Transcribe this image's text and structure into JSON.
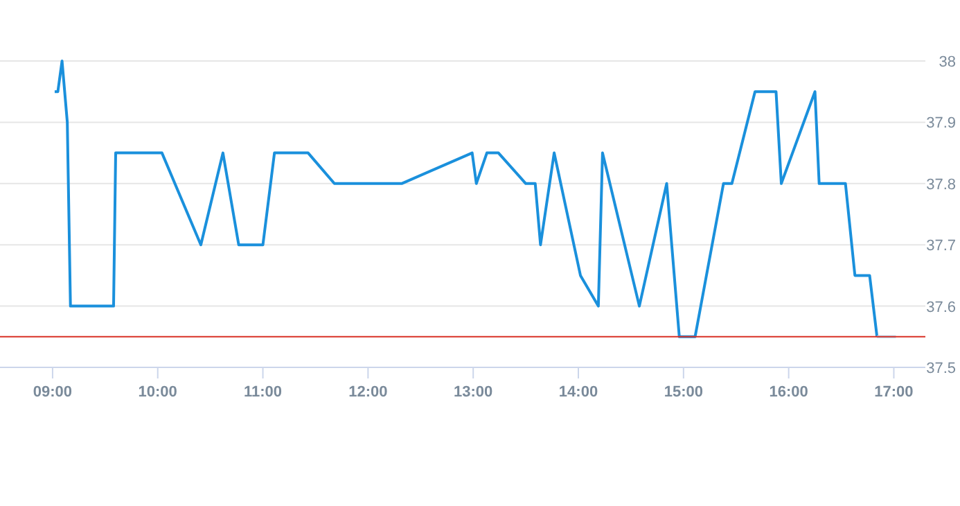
{
  "chart_data": {
    "type": "line",
    "xlim": [
      8.5,
      17.3
    ],
    "ylim": [
      37.5,
      38
    ],
    "xticks": [
      {
        "value": 9,
        "label": "09:00"
      },
      {
        "value": 10,
        "label": "10:00"
      },
      {
        "value": 11,
        "label": "11:00"
      },
      {
        "value": 12,
        "label": "12:00"
      },
      {
        "value": 13,
        "label": "13:00"
      },
      {
        "value": 14,
        "label": "14:00"
      },
      {
        "value": 15,
        "label": "15:00"
      },
      {
        "value": 16,
        "label": "16:00"
      },
      {
        "value": 17,
        "label": "17:00"
      }
    ],
    "yticks": [
      37.5,
      37.6,
      37.7,
      37.8,
      37.9,
      38
    ],
    "grid": "y",
    "marker": "none",
    "line_style": "solid",
    "series": [
      {
        "color": "#1a90dc",
        "x": [
          9.02,
          9.05,
          9.09,
          9.14,
          9.17,
          9.58,
          9.6,
          10.04,
          10.41,
          10.62,
          10.77,
          11.0,
          11.11,
          11.43,
          11.68,
          12.32,
          12.99,
          13.03,
          13.13,
          13.24,
          13.5,
          13.59,
          13.64,
          13.77,
          14.02,
          14.19,
          14.23,
          14.58,
          14.84,
          14.96,
          15.11,
          15.38,
          15.46,
          15.68,
          15.88,
          15.93,
          16.25,
          16.29,
          16.54,
          16.63,
          16.77,
          16.84
        ],
        "values": [
          37.95,
          37.95,
          38.0,
          37.9,
          37.6,
          37.6,
          37.85,
          37.85,
          37.7,
          37.85,
          37.7,
          37.7,
          37.85,
          37.85,
          37.8,
          37.8,
          37.85,
          37.8,
          37.85,
          37.85,
          37.8,
          37.8,
          37.7,
          37.85,
          37.65,
          37.6,
          37.85,
          37.6,
          37.8,
          37.55,
          37.55,
          37.8,
          37.8,
          37.95,
          37.95,
          37.8,
          37.95,
          37.8,
          37.8,
          37.65,
          37.65,
          37.55
        ]
      },
      {
        "color": "#aed6f1",
        "x": [
          16.84,
          17.02
        ],
        "values": [
          37.55,
          37.55
        ]
      }
    ],
    "ref_lines": [
      {
        "axis": "y",
        "value": 37.55,
        "color": "#d93025"
      }
    ]
  }
}
